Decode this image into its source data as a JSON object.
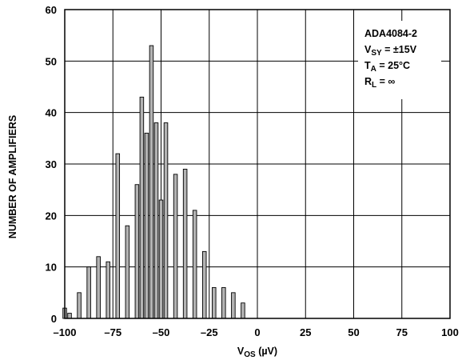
{
  "chart_data": {
    "type": "bar",
    "subtype": "histogram",
    "xlabel": "V_OS (µV)",
    "xlabel_main": "V",
    "xlabel_sub": "OS",
    "xlabel_unit": " (µV)",
    "ylabel": "NUMBER OF AMPLIFIERS",
    "xlim": [
      -100,
      100
    ],
    "ylim": [
      0,
      60
    ],
    "x_ticks": [
      -100,
      -75,
      -50,
      -25,
      0,
      25,
      50,
      75,
      100
    ],
    "x_tick_labels": [
      "–100",
      "–75",
      "–50",
      "–25",
      "0",
      "25",
      "50",
      "75",
      "100"
    ],
    "y_ticks": [
      0,
      10,
      20,
      30,
      40,
      50,
      60
    ],
    "y_tick_labels": [
      "0",
      "10",
      "20",
      "30",
      "40",
      "50",
      "60"
    ],
    "grid": true,
    "bar_color": "#b3b3b3",
    "bins_x": [
      -100,
      -97.5,
      -92.5,
      -87.5,
      -82.5,
      -77.5,
      -72.5,
      -67.5,
      -62.5,
      -60,
      -57.5,
      -55,
      -52.5,
      -50,
      -47.5,
      -42.5,
      -37.5,
      -32.5,
      -27.5,
      -22.5,
      -17.5,
      -12.5,
      -7.5,
      -2.5
    ],
    "values": [
      2,
      1,
      5,
      10,
      12,
      11,
      32,
      18,
      26,
      43,
      36,
      53,
      38,
      23,
      38,
      28,
      29,
      21,
      13,
      6,
      6,
      5,
      3,
      0
    ],
    "annotation": [
      {
        "main": "ADA4084-2",
        "sub": "",
        "rest": ""
      },
      {
        "main": "V",
        "sub": "SY",
        "rest": " = ±15V"
      },
      {
        "main": "T",
        "sub": "A",
        "rest": " = 25°C"
      },
      {
        "main": "R",
        "sub": "L",
        "rest": " = ∞"
      }
    ]
  }
}
